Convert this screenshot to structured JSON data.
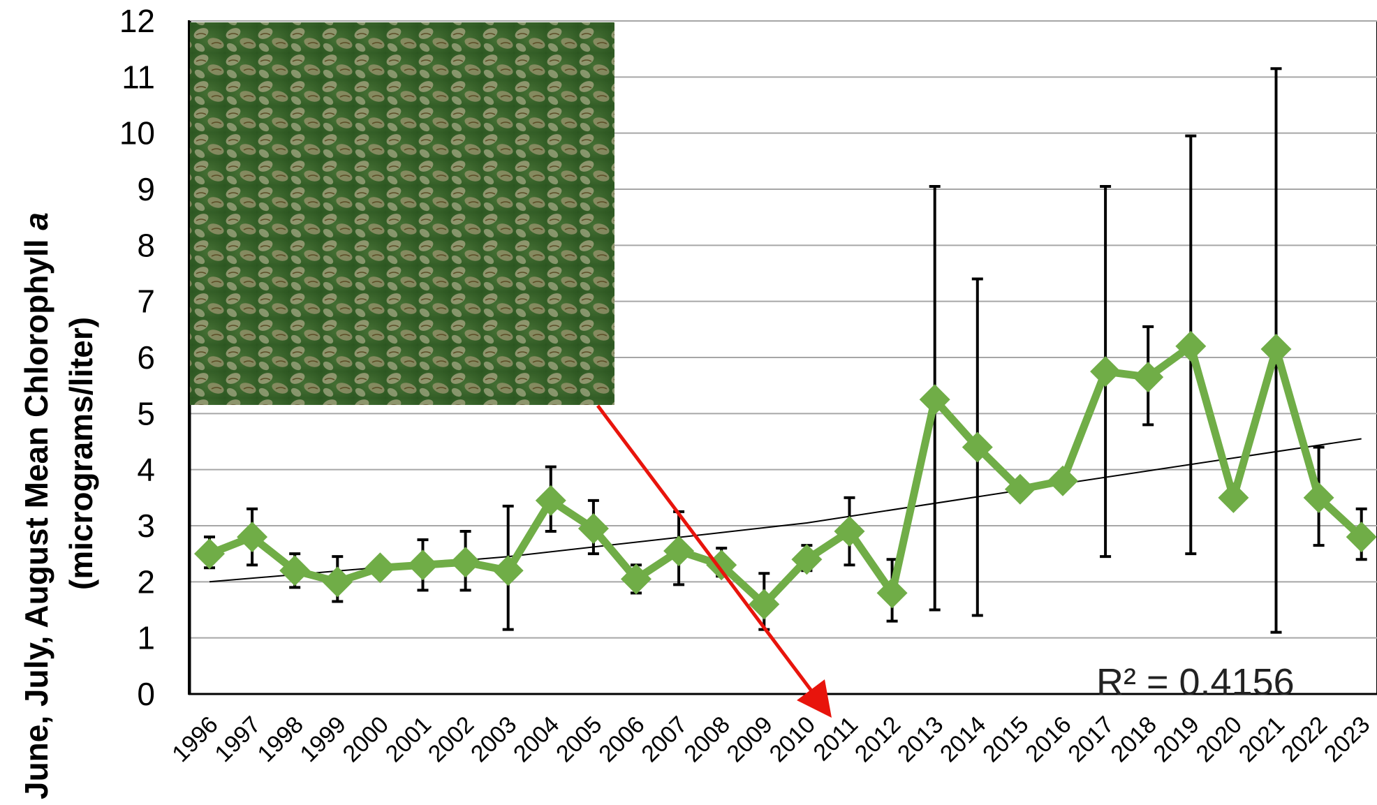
{
  "colors": {
    "series": "#70ad47",
    "error_bar": "#000000",
    "trend": "#000000",
    "grid": "#a6a6a6",
    "arrow": "#e8140c"
  },
  "inset_photo": {
    "subject": "zebra-mussel-cluster-photo"
  },
  "chart_data": {
    "type": "line",
    "title": "",
    "ylabel_line1": "June, July, August Mean Chlorophyll a",
    "ylabel_line2": "(micrograms/liter)",
    "ylabel_italic": "a",
    "xlabel": "",
    "ylim": [
      0,
      12
    ],
    "yticks": [
      "0",
      "1",
      "2",
      "3",
      "4",
      "5",
      "6",
      "7",
      "8",
      "9",
      "10",
      "11",
      "12"
    ],
    "grid": "horizontal",
    "categories": [
      "1996",
      "1997",
      "1998",
      "1999",
      "2000",
      "2001",
      "2002",
      "2003",
      "2004",
      "2005",
      "2006",
      "2007",
      "2008",
      "2009",
      "2010",
      "2011",
      "2012",
      "2013",
      "2014",
      "2015",
      "2016",
      "2017",
      "2018",
      "2019",
      "2020",
      "2021",
      "2022",
      "2023"
    ],
    "series": [
      {
        "values": [
          2.5,
          2.8,
          2.2,
          2.0,
          2.25,
          2.3,
          2.35,
          2.2,
          3.45,
          2.95,
          2.05,
          2.55,
          2.3,
          1.6,
          2.4,
          2.9,
          1.8,
          5.25,
          4.4,
          3.65,
          3.8,
          5.75,
          5.65,
          6.2,
          3.5,
          6.15,
          3.5,
          2.8
        ],
        "error_low": [
          2.25,
          2.3,
          1.9,
          1.65,
          null,
          1.85,
          1.85,
          1.15,
          2.9,
          2.5,
          1.8,
          1.95,
          2.1,
          1.15,
          2.2,
          2.3,
          1.3,
          1.5,
          1.4,
          3.55,
          null,
          2.45,
          4.8,
          2.5,
          null,
          1.1,
          2.65,
          2.4
        ],
        "error_high": [
          2.8,
          3.3,
          2.5,
          2.45,
          null,
          2.75,
          2.9,
          3.35,
          4.05,
          3.45,
          2.3,
          3.25,
          2.6,
          2.15,
          2.65,
          3.5,
          2.4,
          9.05,
          7.4,
          3.75,
          null,
          9.05,
          6.55,
          9.95,
          null,
          11.15,
          4.4,
          3.3
        ]
      }
    ],
    "trendline": {
      "type": "polynomial",
      "x": [
        1996,
        2003,
        2010,
        2016,
        2023
      ],
      "y": [
        2.0,
        2.45,
        3.05,
        3.75,
        4.55
      ]
    },
    "annotation": "R² = 0.4156"
  }
}
